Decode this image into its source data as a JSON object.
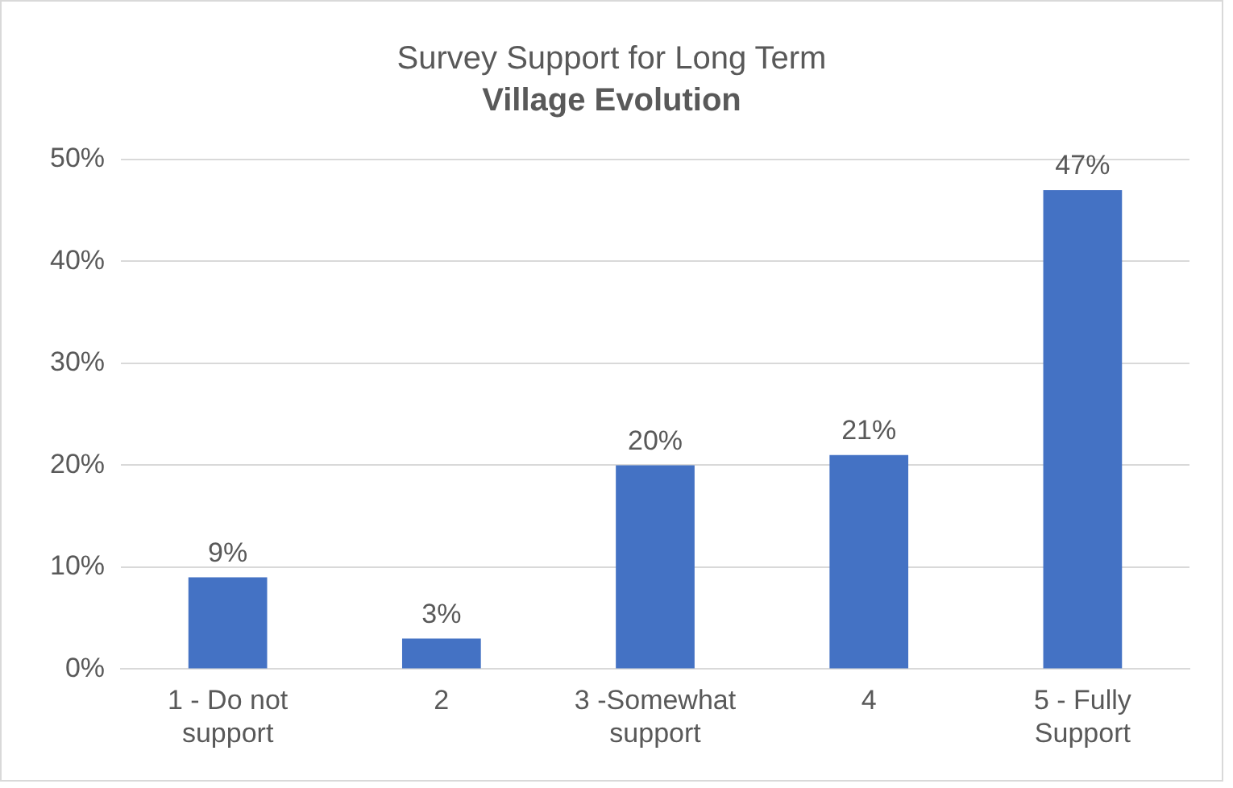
{
  "chart_data": {
    "type": "bar",
    "title": "Survey Support for Long Term",
    "subtitle": "Village Evolution",
    "categories": [
      "1 - Do not support",
      "2",
      "3 -Somewhat support",
      "4",
      "5 - Fully Support"
    ],
    "values": [
      9,
      3,
      20,
      21,
      47
    ],
    "color": "#4472c4",
    "ylim": [
      0,
      50
    ],
    "yticks": [
      {
        "value": 0,
        "label": "0%"
      },
      {
        "value": 10,
        "label": "10%"
      },
      {
        "value": 20,
        "label": "20%"
      },
      {
        "value": 30,
        "label": "30%"
      },
      {
        "value": 40,
        "label": "40%"
      },
      {
        "value": 50,
        "label": "50%"
      }
    ],
    "value_labels": [
      "9%",
      "3%",
      "20%",
      "21%",
      "47%"
    ],
    "grid": "y",
    "legend": false
  }
}
